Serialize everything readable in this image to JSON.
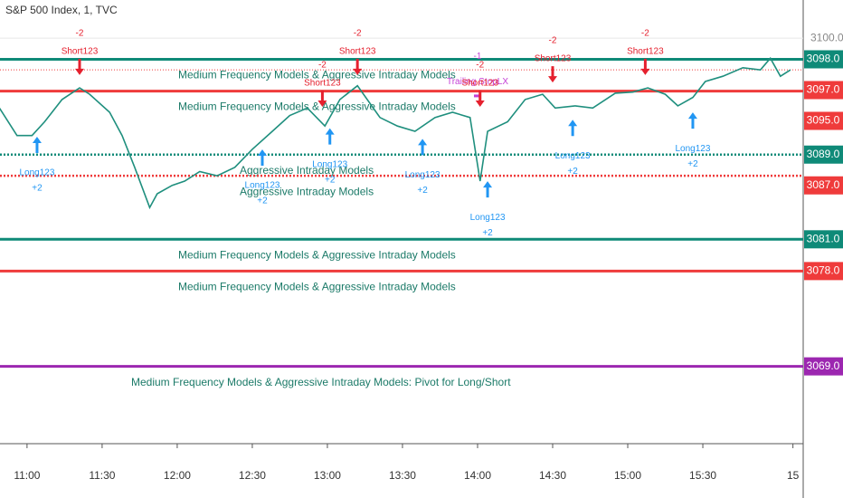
{
  "chart_data": {
    "type": "line",
    "title": "S&P 500 Index, 1, TVC",
    "x": [
      649,
      656,
      662,
      667,
      674,
      681,
      685,
      693,
      698,
      703,
      709,
      712,
      718,
      723,
      729,
      736,
      743,
      750,
      758,
      765,
      772,
      779,
      785,
      792,
      801,
      808,
      815,
      823,
      830,
      837,
      841,
      844,
      852,
      859,
      866,
      871,
      879,
      886,
      895,
      902,
      908,
      915,
      920,
      926,
      931,
      938,
      946,
      953,
      957,
      961,
      965
    ],
    "values": [
      3093.4,
      3090.8,
      3090.8,
      3092.1,
      3094.2,
      3095.3,
      3094.7,
      3093.0,
      3090.8,
      3087.8,
      3084.0,
      3085.3,
      3086.1,
      3086.5,
      3087.4,
      3087.0,
      3087.8,
      3089.5,
      3091.2,
      3092.7,
      3093.4,
      3091.7,
      3094.2,
      3095.5,
      3092.5,
      3091.7,
      3091.2,
      3092.5,
      3093.0,
      3092.5,
      3086.5,
      3091.2,
      3092.1,
      3094.2,
      3094.7,
      3093.4,
      3093.6,
      3093.4,
      3094.8,
      3094.9,
      3095.3,
      3094.7,
      3093.6,
      3094.4,
      3095.9,
      3096.4,
      3097.2,
      3097.0,
      3098.1,
      3096.4,
      3097.0
    ],
    "color": "#1f8f7e",
    "xlim": [
      649.2,
      970.1
    ],
    "ylim": [
      3061.7,
      3103.6
    ],
    "xticks": [
      {
        "value": 660,
        "label": "11:00"
      },
      {
        "value": 690,
        "label": "11:30"
      },
      {
        "value": 720,
        "label": "12:00"
      },
      {
        "value": 750,
        "label": "12:30"
      },
      {
        "value": 780,
        "label": "13:00"
      },
      {
        "value": 810,
        "label": "13:30"
      },
      {
        "value": 840,
        "label": "14:00"
      },
      {
        "value": 870,
        "label": "14:30"
      },
      {
        "value": 900,
        "label": "15:00"
      },
      {
        "value": 930,
        "label": "15:30"
      },
      {
        "value": 966,
        "label": "15"
      }
    ],
    "yticks": [
      {
        "value": 3100,
        "label": "3100.0"
      }
    ],
    "levels": [
      {
        "value": 3098,
        "label": "3098.0",
        "color": "#0f8a78",
        "style": "solid",
        "text": "Medium Frequency Models & Aggressive Intraday Models"
      },
      {
        "value": 3097,
        "label": "3097.0",
        "color": "#ef3b3b",
        "style": "thin-dotted"
      },
      {
        "value": 3095,
        "label": "3095.0",
        "color": "#ef3b3b",
        "style": "solid",
        "text": "Medium Frequency Models & Aggressive Intraday Models"
      },
      {
        "value": 3089,
        "label": "3089.0",
        "color": "#0f8a78",
        "style": "dotted",
        "text": "Aggressive Intraday Models"
      },
      {
        "value": 3087,
        "label": "3087.0",
        "color": "#ef3b3b",
        "style": "dotted",
        "text": "Aggressive Intraday Models"
      },
      {
        "value": 3081,
        "label": "3081.0",
        "color": "#0f8a78",
        "style": "solid",
        "text": "Medium Frequency Models & Aggressive Intraday Models"
      },
      {
        "value": 3078,
        "label": "3078.0",
        "color": "#ef3b3b",
        "style": "solid",
        "text": "Medium Frequency Models & Aggressive Intraday Models"
      },
      {
        "value": 3069,
        "label": "3069.0",
        "color": "#9c27b0",
        "style": "solid",
        "text": "Medium Frequency Models & Aggressive Intraday Models: Pivot for Long/Short"
      }
    ],
    "signals": [
      {
        "kind": "long",
        "label": "Long123",
        "qty": "+2",
        "time": 664,
        "price": 3091.2
      },
      {
        "kind": "short",
        "label": "Short123",
        "qty": "-2",
        "time": 681,
        "price": 3096.0
      },
      {
        "kind": "long",
        "label": "Long123",
        "qty": "+2",
        "time": 754,
        "price": 3090.0
      },
      {
        "kind": "short",
        "label": "Short123",
        "qty": "-2",
        "time": 778,
        "price": 3093.0
      },
      {
        "kind": "long",
        "label": "Long123",
        "qty": "+2",
        "time": 781,
        "price": 3092.0
      },
      {
        "kind": "short",
        "label": "Short123",
        "qty": "-2",
        "time": 792,
        "price": 3096.0
      },
      {
        "kind": "long",
        "label": "Long123",
        "qty": "+2",
        "time": 818,
        "price": 3091.0
      },
      {
        "kind": "stop",
        "label": "Trailing StopLX",
        "qty": "-1",
        "time": 840,
        "price": 3094.5
      },
      {
        "kind": "short",
        "label": "Short123",
        "qty": "-2",
        "time": 841,
        "price": 3093.0
      },
      {
        "kind": "long",
        "label": "Long123",
        "qty": "+2",
        "time": 844,
        "price": 3087.0
      },
      {
        "kind": "short",
        "label": "Short123",
        "qty": "-2",
        "time": 870,
        "price": 3095.3
      },
      {
        "kind": "long",
        "label": "Long123",
        "qty": "+2",
        "time": 878,
        "price": 3092.8
      },
      {
        "kind": "short",
        "label": "Short123",
        "qty": "-2",
        "time": 907,
        "price": 3096.0
      },
      {
        "kind": "long",
        "label": "Long123",
        "qty": "+2",
        "time": 926,
        "price": 3093.5
      }
    ]
  }
}
